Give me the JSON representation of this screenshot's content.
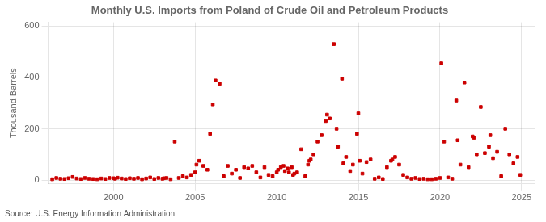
{
  "chart_data": {
    "type": "scatter",
    "title": "Monthly U.S. Imports from Poland of Crude Oil and Petroleum Products",
    "ylabel": "Thousand Barrels",
    "annotations": [
      "Source: U.S. Energy Information Administration"
    ],
    "color": "#cc0000",
    "marker": "square",
    "grid": true,
    "xlim": [
      1996.0,
      2025.8
    ],
    "ylim": [
      -15,
      615
    ],
    "xticks": [
      2000,
      2005,
      2010,
      2015,
      2020,
      2025
    ],
    "yticks": [
      0,
      200,
      400,
      600
    ],
    "x": [
      1996.25,
      1996.5,
      1996.75,
      1997.0,
      1997.25,
      1997.5,
      1997.75,
      1998.0,
      1998.25,
      1998.5,
      1998.75,
      1999.0,
      1999.25,
      1999.5,
      1999.75,
      2000.0,
      2000.1,
      2000.25,
      2000.5,
      2000.75,
      2001.0,
      2001.25,
      2001.5,
      2001.75,
      2002.0,
      2002.25,
      2002.5,
      2002.75,
      2003.0,
      2003.083,
      2003.25,
      2003.5,
      2003.75,
      2004.0,
      2004.25,
      2004.5,
      2004.75,
      2005.0,
      2005.083,
      2005.25,
      2005.5,
      2005.75,
      2005.917,
      2006.083,
      2006.25,
      2006.5,
      2006.75,
      2007.0,
      2007.25,
      2007.5,
      2007.75,
      2008.0,
      2008.25,
      2008.5,
      2008.75,
      2009.0,
      2009.25,
      2009.5,
      2009.75,
      2010.0,
      2010.083,
      2010.25,
      2010.417,
      2010.5,
      2010.667,
      2010.75,
      2010.917,
      2011.0,
      2011.083,
      2011.25,
      2011.5,
      2011.75,
      2011.917,
      2012.0,
      2012.083,
      2012.25,
      2012.5,
      2012.75,
      2013.0,
      2013.083,
      2013.25,
      2013.5,
      2013.667,
      2013.75,
      2014.0,
      2014.083,
      2014.25,
      2014.5,
      2014.667,
      2014.917,
      2015.0,
      2015.083,
      2015.25,
      2015.5,
      2015.75,
      2016.0,
      2016.25,
      2016.5,
      2016.75,
      2017.0,
      2017.083,
      2017.25,
      2017.5,
      2017.75,
      2018.0,
      2018.25,
      2018.5,
      2018.75,
      2019.0,
      2019.25,
      2019.5,
      2019.75,
      2020.0,
      2020.083,
      2020.25,
      2020.5,
      2020.75,
      2021.0,
      2021.083,
      2021.25,
      2021.5,
      2021.75,
      2022.0,
      2022.083,
      2022.25,
      2022.5,
      2022.75,
      2023.0,
      2023.083,
      2023.25,
      2023.5,
      2023.75,
      2024.0,
      2024.25,
      2024.5,
      2024.75,
      2024.917
    ],
    "values": [
      3,
      8,
      5,
      4,
      7,
      12,
      6,
      4,
      8,
      5,
      4,
      3,
      6,
      4,
      8,
      7,
      5,
      9,
      6,
      4,
      7,
      5,
      8,
      3,
      6,
      10,
      4,
      8,
      5,
      7,
      8,
      3,
      150,
      8,
      15,
      10,
      20,
      30,
      60,
      75,
      55,
      40,
      180,
      295,
      388,
      375,
      15,
      55,
      25,
      40,
      8,
      50,
      45,
      55,
      30,
      10,
      50,
      20,
      15,
      30,
      40,
      50,
      55,
      35,
      45,
      30,
      50,
      20,
      25,
      30,
      120,
      15,
      60,
      75,
      80,
      100,
      150,
      175,
      230,
      255,
      240,
      530,
      200,
      130,
      395,
      65,
      90,
      35,
      60,
      180,
      260,
      75,
      25,
      70,
      80,
      5,
      10,
      4,
      50,
      75,
      80,
      90,
      60,
      20,
      10,
      5,
      8,
      4,
      5,
      3,
      3,
      5,
      8,
      455,
      150,
      10,
      5,
      310,
      155,
      60,
      380,
      50,
      170,
      165,
      100,
      285,
      105,
      130,
      175,
      85,
      110,
      15,
      200,
      100,
      65,
      90,
      20
    ]
  }
}
